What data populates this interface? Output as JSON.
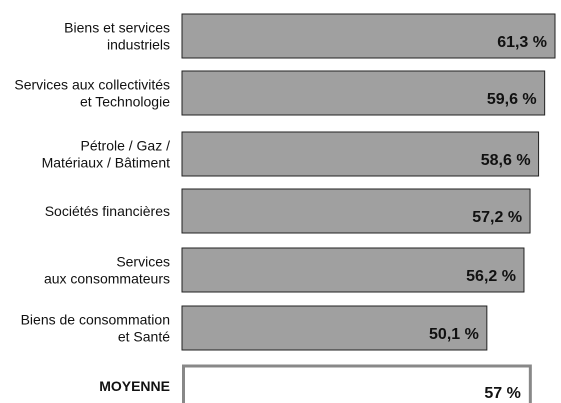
{
  "chart_data": {
    "type": "bar",
    "categories": [
      "Biens et services\nindustriels",
      "Services aux collectivités\net Technologie",
      "Pétrole / Gaz /\nMatériaux / Bâtiment",
      "Sociétés financières",
      "Services\naux consommateurs",
      "Biens de consommation\net Santé"
    ],
    "values": [
      61.3,
      59.6,
      58.6,
      57.2,
      56.2,
      50.1
    ],
    "value_labels": [
      "61,3 %",
      "59,6 %",
      "58,6 %",
      "57,2 %",
      "56,2 %",
      "50,1 %"
    ],
    "color": "#a0a0a0",
    "average": {
      "label": "MOYENNE",
      "value": 57,
      "value_label": "57 %",
      "color": "#ffffff"
    }
  }
}
